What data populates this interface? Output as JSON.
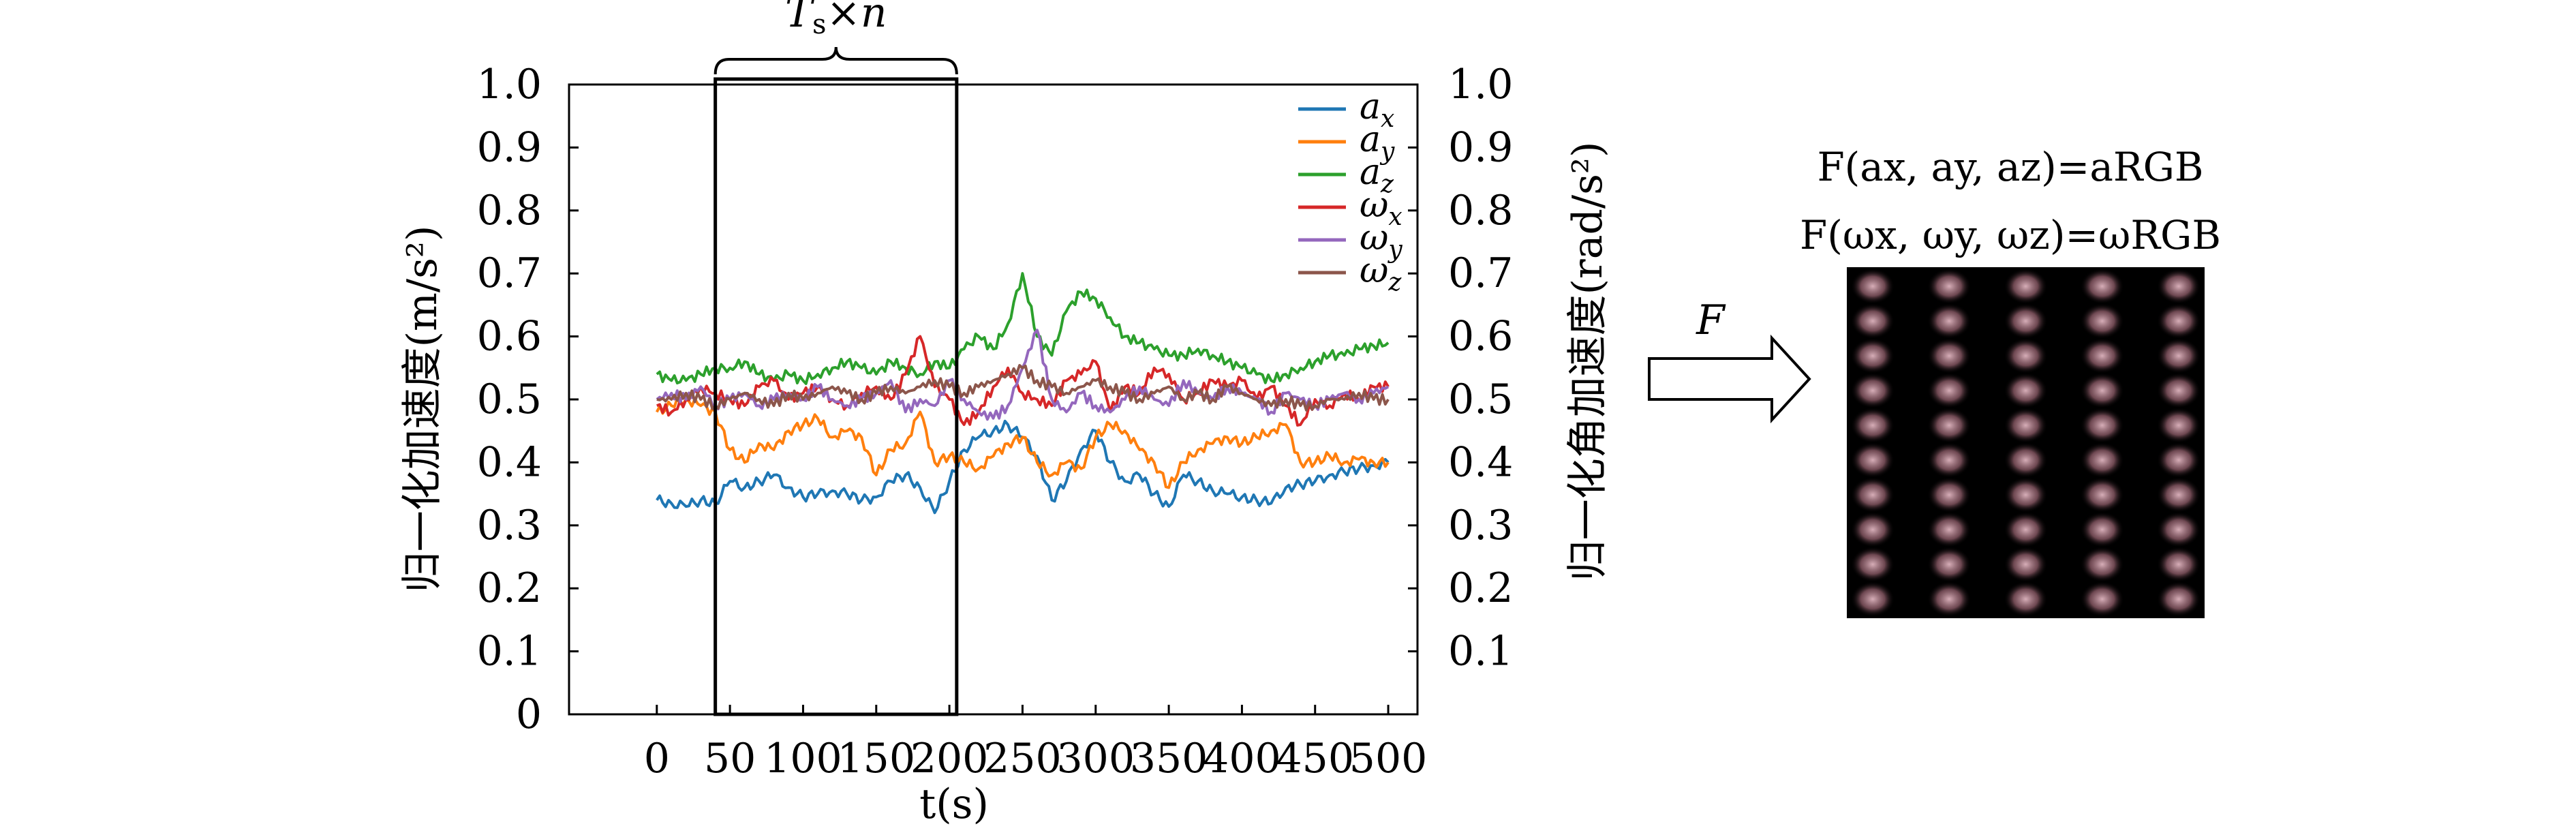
{
  "chart_data": {
    "type": "line",
    "xlabel": "t(s)",
    "ylabel_left": "归一化加速度(m/s²)",
    "ylabel_right": "归一化角加速度(rad/s²)",
    "xlim": [
      -60,
      520
    ],
    "ylim": [
      0,
      1.0
    ],
    "x_ticks": [
      "0",
      "50",
      "100",
      "150",
      "200",
      "250",
      "300",
      "350",
      "400",
      "450",
      "500"
    ],
    "y_ticks_left": [
      "0",
      "0.1",
      "0.2",
      "0.3",
      "0.4",
      "0.5",
      "0.6",
      "0.7",
      "0.8",
      "0.9",
      "1.0"
    ],
    "y_ticks_right": [
      "0.1",
      "0.2",
      "0.3",
      "0.4",
      "0.5",
      "0.6",
      "0.7",
      "0.8",
      "0.9",
      "1.0"
    ],
    "legend_position": "top-right",
    "window": {
      "x_start": 40,
      "x_end": 205,
      "label": "Ts×n"
    },
    "x": [
      0,
      10,
      20,
      30,
      40,
      50,
      60,
      70,
      80,
      90,
      100,
      110,
      120,
      130,
      140,
      150,
      160,
      170,
      180,
      190,
      200,
      210,
      220,
      230,
      240,
      250,
      260,
      270,
      280,
      290,
      300,
      310,
      320,
      330,
      340,
      350,
      360,
      370,
      380,
      390,
      400,
      410,
      420,
      430,
      440,
      450,
      460,
      470,
      480,
      490,
      500
    ],
    "series": [
      {
        "name": "a_x",
        "color": "#1f77b4",
        "values": [
          0.34,
          0.335,
          0.33,
          0.34,
          0.335,
          0.37,
          0.36,
          0.37,
          0.38,
          0.36,
          0.345,
          0.35,
          0.355,
          0.35,
          0.34,
          0.345,
          0.37,
          0.38,
          0.36,
          0.32,
          0.37,
          0.42,
          0.44,
          0.45,
          0.46,
          0.44,
          0.41,
          0.34,
          0.37,
          0.42,
          0.45,
          0.4,
          0.37,
          0.38,
          0.35,
          0.33,
          0.38,
          0.37,
          0.355,
          0.35,
          0.345,
          0.34,
          0.335,
          0.36,
          0.365,
          0.37,
          0.38,
          0.385,
          0.39,
          0.395,
          0.4
        ]
      },
      {
        "name": "a_y",
        "color": "#ff7f0e",
        "values": [
          0.48,
          0.49,
          0.5,
          0.49,
          0.48,
          0.42,
          0.4,
          0.43,
          0.42,
          0.45,
          0.46,
          0.47,
          0.44,
          0.45,
          0.44,
          0.38,
          0.42,
          0.43,
          0.48,
          0.4,
          0.41,
          0.4,
          0.39,
          0.41,
          0.43,
          0.44,
          0.4,
          0.38,
          0.4,
          0.39,
          0.44,
          0.46,
          0.45,
          0.42,
          0.4,
          0.36,
          0.4,
          0.42,
          0.43,
          0.44,
          0.43,
          0.44,
          0.45,
          0.46,
          0.4,
          0.4,
          0.41,
          0.4,
          0.405,
          0.4,
          0.4
        ]
      },
      {
        "name": "a_z",
        "color": "#2ca02c",
        "values": [
          0.54,
          0.53,
          0.53,
          0.54,
          0.55,
          0.55,
          0.56,
          0.54,
          0.53,
          0.54,
          0.53,
          0.54,
          0.55,
          0.56,
          0.55,
          0.54,
          0.56,
          0.55,
          0.54,
          0.56,
          0.55,
          0.58,
          0.6,
          0.58,
          0.62,
          0.7,
          0.6,
          0.57,
          0.64,
          0.67,
          0.66,
          0.63,
          0.6,
          0.59,
          0.58,
          0.57,
          0.57,
          0.58,
          0.57,
          0.56,
          0.55,
          0.54,
          0.53,
          0.54,
          0.55,
          0.56,
          0.57,
          0.57,
          0.58,
          0.585,
          0.59
        ]
      },
      {
        "name": "ω_x",
        "color": "#d62728",
        "values": [
          0.49,
          0.48,
          0.5,
          0.52,
          0.51,
          0.5,
          0.49,
          0.52,
          0.53,
          0.5,
          0.51,
          0.52,
          0.5,
          0.49,
          0.51,
          0.52,
          0.5,
          0.54,
          0.6,
          0.52,
          0.5,
          0.46,
          0.48,
          0.52,
          0.55,
          0.51,
          0.5,
          0.49,
          0.53,
          0.54,
          0.56,
          0.48,
          0.52,
          0.51,
          0.55,
          0.54,
          0.5,
          0.51,
          0.53,
          0.52,
          0.53,
          0.5,
          0.52,
          0.49,
          0.46,
          0.5,
          0.49,
          0.51,
          0.5,
          0.52,
          0.52
        ]
      },
      {
        "name": "ω_y",
        "color": "#9467bd",
        "values": [
          0.5,
          0.51,
          0.5,
          0.52,
          0.49,
          0.5,
          0.51,
          0.49,
          0.5,
          0.51,
          0.5,
          0.52,
          0.5,
          0.49,
          0.5,
          0.51,
          0.53,
          0.48,
          0.5,
          0.49,
          0.53,
          0.5,
          0.48,
          0.47,
          0.49,
          0.55,
          0.61,
          0.5,
          0.48,
          0.51,
          0.49,
          0.48,
          0.5,
          0.52,
          0.5,
          0.49,
          0.53,
          0.51,
          0.5,
          0.52,
          0.51,
          0.5,
          0.48,
          0.51,
          0.5,
          0.49,
          0.5,
          0.51,
          0.5,
          0.51,
          0.52
        ]
      },
      {
        "name": "ω_z",
        "color": "#8c564b",
        "values": [
          0.5,
          0.5,
          0.51,
          0.5,
          0.49,
          0.5,
          0.51,
          0.5,
          0.49,
          0.51,
          0.5,
          0.51,
          0.52,
          0.51,
          0.5,
          0.51,
          0.52,
          0.51,
          0.52,
          0.53,
          0.52,
          0.51,
          0.52,
          0.53,
          0.54,
          0.55,
          0.53,
          0.52,
          0.51,
          0.52,
          0.53,
          0.52,
          0.51,
          0.5,
          0.51,
          0.52,
          0.5,
          0.51,
          0.5,
          0.52,
          0.51,
          0.5,
          0.49,
          0.5,
          0.49,
          0.49,
          0.5,
          0.5,
          0.51,
          0.5,
          0.5
        ]
      }
    ]
  },
  "legend": {
    "items": [
      {
        "base": "a",
        "sub": "x"
      },
      {
        "base": "a",
        "sub": "y"
      },
      {
        "base": "a",
        "sub": "z"
      },
      {
        "base": "ω",
        "sub": "x"
      },
      {
        "base": "ω",
        "sub": "y"
      },
      {
        "base": "ω",
        "sub": "z"
      }
    ]
  },
  "window_label": {
    "main": "T",
    "sub": "s",
    "rest": "×n"
  },
  "transform": {
    "arrow_label": "F"
  },
  "formulas": {
    "line1": "F(ax, ay, az)=aRGB",
    "line2": "F(ωx, ωy, ωz)=ωRGB"
  },
  "rgb_image": {
    "columns": 5,
    "rows": 10,
    "dot_color": "#d7aeb8",
    "background": "#000000"
  }
}
